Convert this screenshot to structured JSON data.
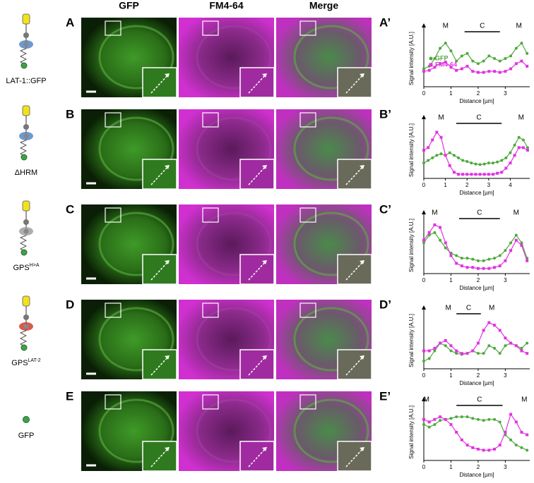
{
  "columns": [
    "GFP",
    "FM4-64",
    "Merge"
  ],
  "rows": [
    {
      "panel": "A",
      "construct": {
        "base": "LAT-1::GFP"
      }
    },
    {
      "panel": "B",
      "construct": {
        "base": "ΔHRM"
      }
    },
    {
      "panel": "C",
      "construct": {
        "base": "GPS",
        "sup": "H>A"
      }
    },
    {
      "panel": "D",
      "construct": {
        "base": "GPS",
        "sup": "LAT-2"
      }
    },
    {
      "panel": "E",
      "construct": {
        "base": "GFP"
      }
    }
  ],
  "chart_data": [
    {
      "type": "line",
      "panel": "A’",
      "ylabel": "Signal intensity [A.U.]",
      "xlabel": "Distance [µm]",
      "legend": true,
      "xlim": [
        0,
        3.9
      ],
      "xticks": [
        0,
        1,
        2,
        3
      ],
      "ylim": [
        0,
        1.1
      ],
      "x": [
        0,
        0.2,
        0.4,
        0.6,
        0.8,
        1,
        1.2,
        1.4,
        1.6,
        1.8,
        2,
        2.2,
        2.4,
        2.6,
        2.8,
        3,
        3.2,
        3.4,
        3.6,
        3.8
      ],
      "series": [
        {
          "name": "GFP",
          "color": "#4fa83d",
          "values": [
            0.35,
            0.4,
            0.55,
            0.75,
            0.85,
            0.7,
            0.5,
            0.6,
            0.65,
            0.5,
            0.45,
            0.5,
            0.6,
            0.55,
            0.5,
            0.55,
            0.6,
            0.75,
            0.85,
            0.65
          ]
        },
        {
          "name": "FM4-64",
          "color": "#e233e2",
          "values": [
            0.3,
            0.32,
            0.38,
            0.45,
            0.48,
            0.38,
            0.32,
            0.35,
            0.4,
            0.3,
            0.28,
            0.28,
            0.3,
            0.3,
            0.28,
            0.3,
            0.35,
            0.45,
            0.5,
            0.4
          ]
        }
      ],
      "annotations": [
        {
          "text": "M",
          "x": 0.8
        },
        {
          "text": "C",
          "x": [
            1.5,
            2.8
          ]
        },
        {
          "text": "M",
          "x": 3.5
        }
      ]
    },
    {
      "type": "line",
      "panel": "B’",
      "ylabel": "Signal intensity [A.U.]",
      "xlabel": "Distance [µm]",
      "xlim": [
        0,
        4.9
      ],
      "xticks": [
        0,
        1,
        2,
        3,
        4
      ],
      "ylim": [
        0,
        1.1
      ],
      "x": [
        0,
        0.2,
        0.4,
        0.6,
        0.8,
        1,
        1.2,
        1.4,
        1.6,
        1.8,
        2,
        2.2,
        2.4,
        2.6,
        2.8,
        3,
        3.2,
        3.4,
        3.6,
        3.8,
        4,
        4.2,
        4.4,
        4.6,
        4.8
      ],
      "series": [
        {
          "color": "#4fa83d",
          "values": [
            0.3,
            0.35,
            0.4,
            0.45,
            0.48,
            0.45,
            0.5,
            0.45,
            0.4,
            0.35,
            0.33,
            0.3,
            0.28,
            0.27,
            0.28,
            0.3,
            0.3,
            0.32,
            0.35,
            0.4,
            0.5,
            0.65,
            0.8,
            0.75,
            0.6
          ]
        },
        {
          "color": "#e233e2",
          "values": [
            0.55,
            0.6,
            0.75,
            0.9,
            0.8,
            0.45,
            0.25,
            0.12,
            0.08,
            0.08,
            0.08,
            0.08,
            0.08,
            0.08,
            0.08,
            0.08,
            0.08,
            0.1,
            0.12,
            0.2,
            0.3,
            0.45,
            0.6,
            0.6,
            0.55
          ]
        }
      ],
      "annotations": [
        {
          "text": "M",
          "x": 0.8
        },
        {
          "text": "C",
          "x": [
            1.5,
            3.6
          ]
        },
        {
          "text": "M",
          "x": 4.5
        }
      ]
    },
    {
      "type": "line",
      "panel": "C’",
      "ylabel": "Signal intensity [A.U.]",
      "xlabel": "Distance [µm]",
      "xlim": [
        0,
        3.9
      ],
      "xticks": [
        0,
        1,
        2,
        3
      ],
      "ylim": [
        0,
        1.1
      ],
      "x": [
        0,
        0.2,
        0.4,
        0.6,
        0.8,
        1,
        1.2,
        1.4,
        1.6,
        1.8,
        2,
        2.2,
        2.4,
        2.6,
        2.8,
        3,
        3.2,
        3.4,
        3.6,
        3.8
      ],
      "series": [
        {
          "color": "#4fa83d",
          "values": [
            0.6,
            0.75,
            0.8,
            0.65,
            0.5,
            0.4,
            0.35,
            0.3,
            0.3,
            0.28,
            0.25,
            0.25,
            0.28,
            0.3,
            0.35,
            0.45,
            0.6,
            0.75,
            0.6,
            0.3
          ]
        },
        {
          "color": "#e233e2",
          "values": [
            0.65,
            0.8,
            0.95,
            0.9,
            0.6,
            0.35,
            0.2,
            0.15,
            0.12,
            0.12,
            0.1,
            0.1,
            0.1,
            0.12,
            0.15,
            0.25,
            0.45,
            0.65,
            0.55,
            0.25
          ]
        }
      ],
      "annotations": [
        {
          "text": "M",
          "x": 0.4
        },
        {
          "text": "C",
          "x": [
            1.3,
            2.8
          ]
        },
        {
          "text": "M",
          "x": 3.4
        }
      ]
    },
    {
      "type": "line",
      "panel": "D’",
      "ylabel": "Signal intensity [A.U.]",
      "xlabel": "Distance [µm]",
      "xlim": [
        0,
        3.9
      ],
      "xticks": [
        0,
        1,
        2,
        3
      ],
      "ylim": [
        0,
        1.1
      ],
      "x": [
        0,
        0.2,
        0.4,
        0.6,
        0.8,
        1,
        1.2,
        1.4,
        1.6,
        1.8,
        2,
        2.2,
        2.4,
        2.6,
        2.8,
        3,
        3.2,
        3.4,
        3.6,
        3.8
      ],
      "series": [
        {
          "color": "#4fa83d",
          "values": [
            0.15,
            0.2,
            0.35,
            0.5,
            0.45,
            0.35,
            0.3,
            0.28,
            0.3,
            0.35,
            0.3,
            0.3,
            0.45,
            0.4,
            0.3,
            0.45,
            0.5,
            0.45,
            0.4,
            0.5
          ]
        },
        {
          "color": "#e233e2",
          "values": [
            0.35,
            0.35,
            0.4,
            0.5,
            0.55,
            0.45,
            0.35,
            0.3,
            0.3,
            0.35,
            0.5,
            0.75,
            0.9,
            0.85,
            0.75,
            0.6,
            0.5,
            0.45,
            0.35,
            0.3
          ]
        }
      ],
      "annotations": [
        {
          "text": "M",
          "x": 0.9
        },
        {
          "text": "C",
          "x": [
            1.2,
            2.1
          ]
        },
        {
          "text": "M",
          "x": 2.5
        }
      ]
    },
    {
      "type": "line",
      "panel": "E’",
      "ylabel": "Signal intensity [A.U.]",
      "xlabel": "Distance [µm]",
      "xlim": [
        0,
        3.9
      ],
      "xticks": [
        0,
        1,
        2,
        3
      ],
      "ylim": [
        0,
        1.1
      ],
      "x": [
        0,
        0.2,
        0.4,
        0.6,
        0.8,
        1,
        1.2,
        1.4,
        1.6,
        1.8,
        2,
        2.2,
        2.4,
        2.6,
        2.8,
        3,
        3.2,
        3.4,
        3.6,
        3.8
      ],
      "series": [
        {
          "color": "#4fa83d",
          "values": [
            0.7,
            0.65,
            0.7,
            0.78,
            0.8,
            0.82,
            0.85,
            0.85,
            0.85,
            0.82,
            0.8,
            0.78,
            0.8,
            0.8,
            0.75,
            0.5,
            0.4,
            0.3,
            0.25,
            0.2
          ]
        },
        {
          "color": "#e233e2",
          "values": [
            0.8,
            0.75,
            0.8,
            0.85,
            0.8,
            0.7,
            0.55,
            0.4,
            0.3,
            0.25,
            0.22,
            0.2,
            0.2,
            0.22,
            0.3,
            0.55,
            0.9,
            0.75,
            0.55,
            0.5
          ]
        }
      ],
      "annotations": [
        {
          "text": "M",
          "x": 0.1
        },
        {
          "text": "C",
          "x": [
            1.2,
            2.9
          ]
        },
        {
          "text": "M",
          "x": 3.7
        }
      ]
    }
  ]
}
